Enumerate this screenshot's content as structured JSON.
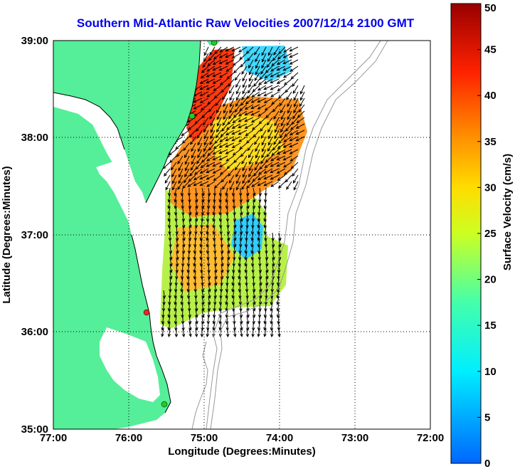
{
  "title": "Southern Mid-Atlantic Raw Velocities 2007/12/14 2100 GMT",
  "x_axis": {
    "label": "Longitude (Degrees:Minutes)",
    "ticks": [
      "77:00",
      "76:00",
      "75:00",
      "74:00",
      "73:00",
      "72:00"
    ]
  },
  "y_axis": {
    "label": "Latitude (Degrees:Minutes)",
    "ticks": [
      "39:00",
      "38:00",
      "37:00",
      "36:00",
      "35:00"
    ]
  },
  "colorbar": {
    "label": "Surface Velocity (cm/s)",
    "ticks": [
      "50",
      "45",
      "40",
      "35",
      "30",
      "25",
      "20",
      "15",
      "10",
      "5",
      "0"
    ],
    "min": 0,
    "max": 50
  },
  "colors": {
    "land": "#55ee99",
    "water": "#ffffff",
    "title": "#0000ee",
    "bathymetry": "#999999",
    "arrows": "#000000",
    "station_green": "#22cc22",
    "station_red": "#ee2222"
  },
  "velocity_regions": [
    {
      "zone": "north-east",
      "speed_cm_s": 8
    },
    {
      "zone": "north-west",
      "speed_cm_s": 44
    },
    {
      "zone": "center",
      "speed_cm_s": 37
    },
    {
      "zone": "center-east-low",
      "speed_cm_s": 9
    },
    {
      "zone": "south",
      "speed_cm_s": 27
    }
  ],
  "stations": [
    {
      "color": "green"
    },
    {
      "color": "green"
    },
    {
      "color": "red"
    },
    {
      "color": "green"
    }
  ]
}
